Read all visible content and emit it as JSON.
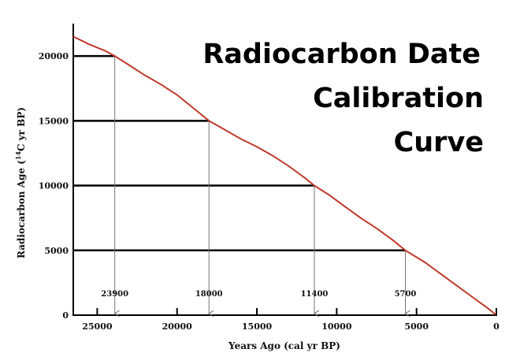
{
  "chart_data": {
    "type": "line",
    "title": [
      "Radiocarbon Date",
      "Calibration",
      "Curve"
    ],
    "xlabel": "Years Ago (cal yr BP)",
    "ylabel_prefix": "Radiocarbon Age (",
    "ylabel_sup": "14",
    "ylabel_suffix": "C yr BP)",
    "xlim": [
      26500,
      0
    ],
    "ylim": [
      0,
      22500
    ],
    "x_ticks": [
      25000,
      20000,
      15000,
      10000,
      5000,
      0
    ],
    "x_tick_labels": [
      "25000",
      "20000",
      "15000",
      "10000",
      "5000",
      "0"
    ],
    "y_ticks": [
      0,
      5000,
      10000,
      15000,
      20000
    ],
    "y_tick_labels": [
      "0",
      "5000",
      "10000",
      "15000",
      "20000"
    ],
    "series": [
      {
        "color": "#c0392b",
        "x": [
          26500,
          25500,
          24500,
          23900,
          23000,
          22000,
          21000,
          20000,
          19000,
          18000,
          17000,
          16000,
          15000,
          14000,
          13000,
          12000,
          11400,
          10500,
          9500,
          8500,
          7500,
          6500,
          5700,
          4500,
          3500,
          2500,
          1500,
          500,
          0
        ],
        "y": [
          21500,
          20900,
          20400,
          20000,
          19300,
          18500,
          17800,
          17000,
          16000,
          15000,
          14300,
          13600,
          13000,
          12300,
          11500,
          10600,
          10000,
          9300,
          8400,
          7500,
          6700,
          5800,
          5000,
          4100,
          3200,
          2300,
          1400,
          500,
          0
        ]
      }
    ],
    "calibration_points": [
      {
        "radiocarbon": 20000,
        "cal": 23900,
        "label": "23900"
      },
      {
        "radiocarbon": 15000,
        "cal": 18000,
        "label": "18000"
      },
      {
        "radiocarbon": 10000,
        "cal": 11400,
        "label": "11400"
      },
      {
        "radiocarbon": 5000,
        "cal": 5700,
        "label": "5700"
      }
    ],
    "grid": false
  }
}
